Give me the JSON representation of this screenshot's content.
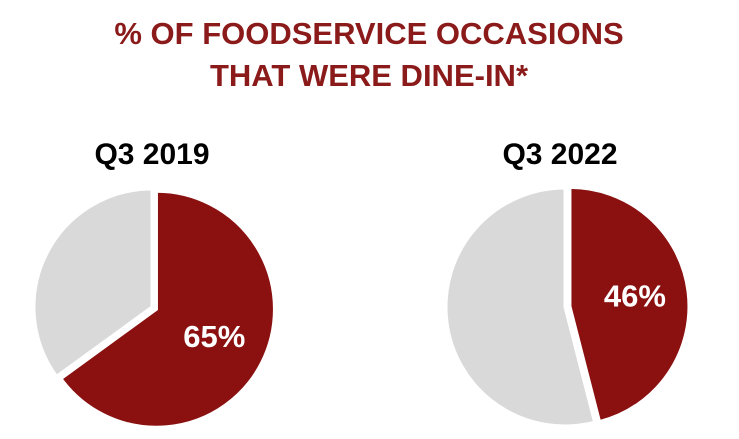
{
  "title": [
    "% OF FOODSERVICE OCCASIONS",
    "THAT WERE DINE-IN*"
  ],
  "chart_data": [
    {
      "type": "pie",
      "title": "Q3 2019",
      "values": [
        65,
        35
      ],
      "value_labels": [
        "65%",
        null
      ],
      "colors": [
        "#8b1111",
        "#d9d9d9"
      ]
    },
    {
      "type": "pie",
      "title": "Q3 2022",
      "values": [
        46,
        54
      ],
      "value_labels": [
        "46%",
        null
      ],
      "colors": [
        "#8b1111",
        "#d9d9d9"
      ]
    }
  ]
}
